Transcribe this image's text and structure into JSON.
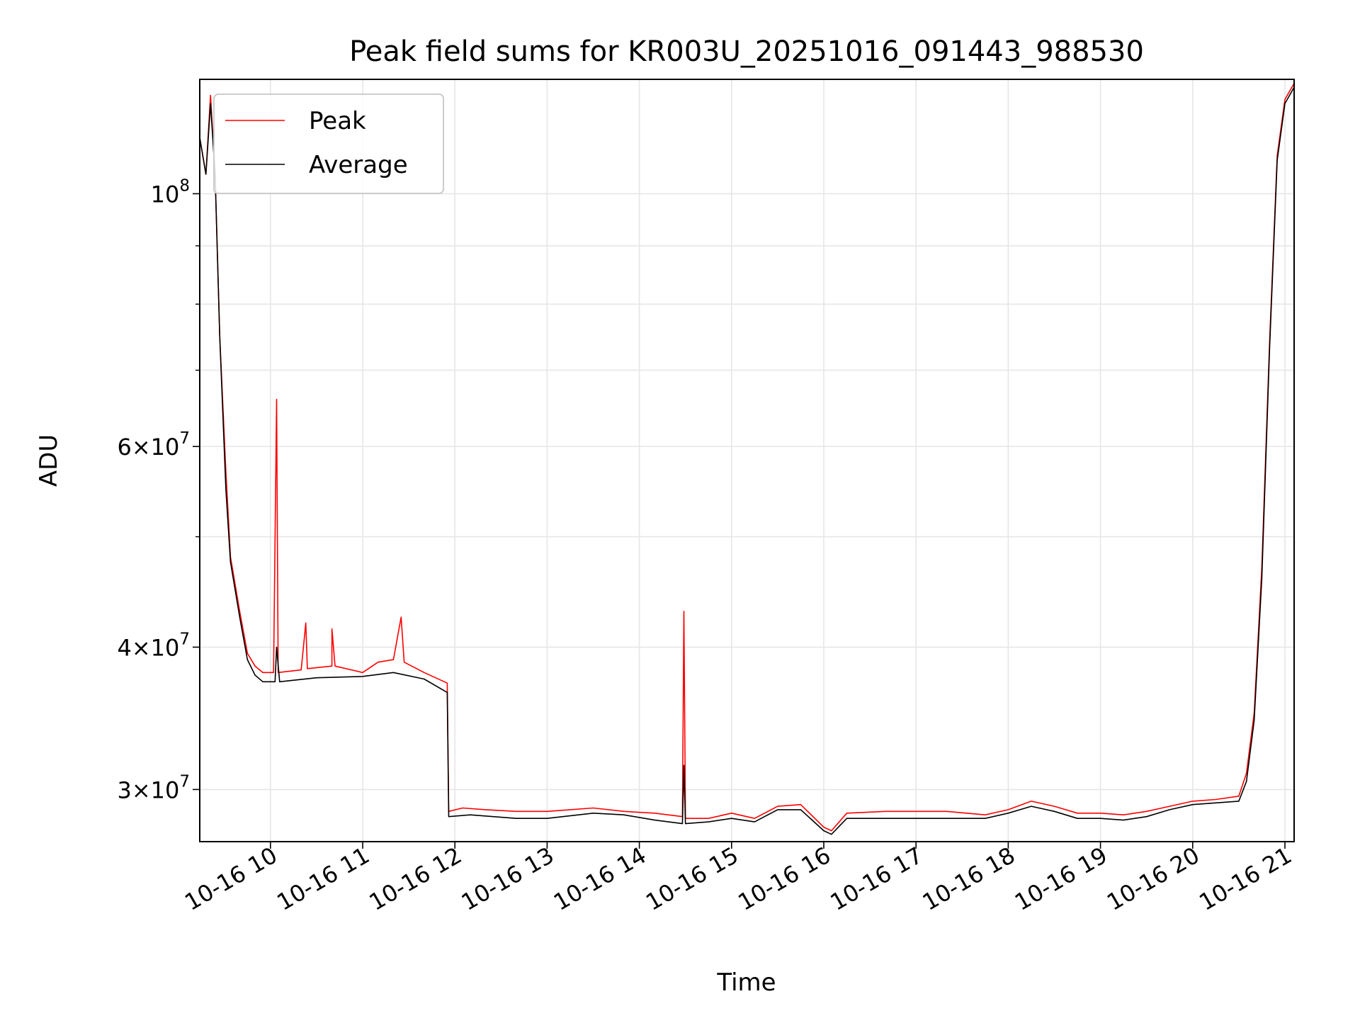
{
  "chart_data": {
    "type": "line",
    "title": "Peak field sums for KR003U_20251016_091443_988530",
    "xlabel": "Time",
    "ylabel": "ADU",
    "scale": {
      "x": "time",
      "y": "log"
    },
    "xlim": [
      "2025-10-16T09:14",
      "2025-10-16T21:06"
    ],
    "ylim": [
      27000000,
      126000000
    ],
    "grid": true,
    "legend_position": "upper-left",
    "x_ticks": [
      {
        "time": "2025-10-16T10:00",
        "label": "10-16 10"
      },
      {
        "time": "2025-10-16T11:00",
        "label": "10-16 11"
      },
      {
        "time": "2025-10-16T12:00",
        "label": "10-16 12"
      },
      {
        "time": "2025-10-16T13:00",
        "label": "10-16 13"
      },
      {
        "time": "2025-10-16T14:00",
        "label": "10-16 14"
      },
      {
        "time": "2025-10-16T15:00",
        "label": "10-16 15"
      },
      {
        "time": "2025-10-16T16:00",
        "label": "10-16 16"
      },
      {
        "time": "2025-10-16T17:00",
        "label": "10-16 17"
      },
      {
        "time": "2025-10-16T18:00",
        "label": "10-16 18"
      },
      {
        "time": "2025-10-16T19:00",
        "label": "10-16 19"
      },
      {
        "time": "2025-10-16T20:00",
        "label": "10-16 20"
      },
      {
        "time": "2025-10-16T21:00",
        "label": "10-16 21"
      }
    ],
    "y_major_ticks": [
      {
        "value": 30000000,
        "mantissa": "3",
        "base": "10",
        "exp": "7"
      },
      {
        "value": 40000000,
        "mantissa": "4",
        "base": "10",
        "exp": "7"
      },
      {
        "value": 60000000,
        "mantissa": "6",
        "base": "10",
        "exp": "7"
      },
      {
        "value": 100000000,
        "mantissa": "",
        "base": "10",
        "exp": "8"
      }
    ],
    "y_minor_ticks": [
      50000000,
      70000000,
      80000000,
      90000000
    ],
    "series": [
      {
        "name": "Peak",
        "color": "#ff0000",
        "points": [
          [
            "2025-10-16T09:14",
            112000000
          ],
          [
            "2025-10-16T09:18",
            104000000
          ],
          [
            "2025-10-16T09:21",
            122000000
          ],
          [
            "2025-10-16T09:24",
            104000000
          ],
          [
            "2025-10-16T09:27",
            75000000
          ],
          [
            "2025-10-16T09:31",
            57000000
          ],
          [
            "2025-10-16T09:34",
            48000000
          ],
          [
            "2025-10-16T09:40",
            43000000
          ],
          [
            "2025-10-16T09:45",
            39500000
          ],
          [
            "2025-10-16T09:50",
            38500000
          ],
          [
            "2025-10-16T09:55",
            38000000
          ],
          [
            "2025-10-16T10:02",
            38000000
          ],
          [
            "2025-10-16T10:04",
            66000000
          ],
          [
            "2025-10-16T10:05",
            38000000
          ],
          [
            "2025-10-16T10:20",
            38200000
          ],
          [
            "2025-10-16T10:23",
            42000000
          ],
          [
            "2025-10-16T10:24",
            38300000
          ],
          [
            "2025-10-16T10:40",
            38500000
          ],
          [
            "2025-10-16T10:40",
            41500000
          ],
          [
            "2025-10-16T10:42",
            38500000
          ],
          [
            "2025-10-16T11:00",
            38000000
          ],
          [
            "2025-10-16T11:10",
            38800000
          ],
          [
            "2025-10-16T11:20",
            39000000
          ],
          [
            "2025-10-16T11:25",
            42500000
          ],
          [
            "2025-10-16T11:27",
            38800000
          ],
          [
            "2025-10-16T11:40",
            38000000
          ],
          [
            "2025-10-16T11:55",
            37200000
          ],
          [
            "2025-10-16T11:56",
            28700000
          ],
          [
            "2025-10-16T12:05",
            28900000
          ],
          [
            "2025-10-16T12:20",
            28800000
          ],
          [
            "2025-10-16T12:40",
            28700000
          ],
          [
            "2025-10-16T13:00",
            28700000
          ],
          [
            "2025-10-16T13:15",
            28800000
          ],
          [
            "2025-10-16T13:30",
            28900000
          ],
          [
            "2025-10-16T13:50",
            28700000
          ],
          [
            "2025-10-16T14:10",
            28600000
          ],
          [
            "2025-10-16T14:28",
            28400000
          ],
          [
            "2025-10-16T14:29",
            43000000
          ],
          [
            "2025-10-16T14:30",
            28300000
          ],
          [
            "2025-10-16T14:45",
            28300000
          ],
          [
            "2025-10-16T15:00",
            28600000
          ],
          [
            "2025-10-16T15:15",
            28300000
          ],
          [
            "2025-10-16T15:30",
            29000000
          ],
          [
            "2025-10-16T15:45",
            29100000
          ],
          [
            "2025-10-16T16:00",
            27800000
          ],
          [
            "2025-10-16T16:05",
            27600000
          ],
          [
            "2025-10-16T16:15",
            28600000
          ],
          [
            "2025-10-16T16:40",
            28700000
          ],
          [
            "2025-10-16T17:00",
            28700000
          ],
          [
            "2025-10-16T17:20",
            28700000
          ],
          [
            "2025-10-16T17:45",
            28500000
          ],
          [
            "2025-10-16T18:00",
            28800000
          ],
          [
            "2025-10-16T18:15",
            29300000
          ],
          [
            "2025-10-16T18:30",
            29000000
          ],
          [
            "2025-10-16T18:45",
            28600000
          ],
          [
            "2025-10-16T19:00",
            28600000
          ],
          [
            "2025-10-16T19:15",
            28500000
          ],
          [
            "2025-10-16T19:30",
            28700000
          ],
          [
            "2025-10-16T19:45",
            29000000
          ],
          [
            "2025-10-16T20:00",
            29300000
          ],
          [
            "2025-10-16T20:15",
            29400000
          ],
          [
            "2025-10-16T20:30",
            29600000
          ],
          [
            "2025-10-16T20:35",
            31000000
          ],
          [
            "2025-10-16T20:40",
            35000000
          ],
          [
            "2025-10-16T20:45",
            47000000
          ],
          [
            "2025-10-16T20:50",
            74000000
          ],
          [
            "2025-10-16T20:55",
            108000000
          ],
          [
            "2025-10-16T21:00",
            121000000
          ],
          [
            "2025-10-16T21:06",
            125000000
          ]
        ]
      },
      {
        "name": "Average",
        "color": "#000000",
        "points": [
          [
            "2025-10-16T09:14",
            112000000
          ],
          [
            "2025-10-16T09:18",
            104000000
          ],
          [
            "2025-10-16T09:21",
            120000000
          ],
          [
            "2025-10-16T09:24",
            104000000
          ],
          [
            "2025-10-16T09:27",
            75000000
          ],
          [
            "2025-10-16T09:31",
            55000000
          ],
          [
            "2025-10-16T09:34",
            47500000
          ],
          [
            "2025-10-16T09:40",
            42500000
          ],
          [
            "2025-10-16T09:45",
            39000000
          ],
          [
            "2025-10-16T09:50",
            37800000
          ],
          [
            "2025-10-16T09:55",
            37300000
          ],
          [
            "2025-10-16T10:03",
            37300000
          ],
          [
            "2025-10-16T10:04",
            40000000
          ],
          [
            "2025-10-16T10:06",
            37300000
          ],
          [
            "2025-10-16T10:30",
            37600000
          ],
          [
            "2025-10-16T11:00",
            37700000
          ],
          [
            "2025-10-16T11:20",
            38000000
          ],
          [
            "2025-10-16T11:40",
            37500000
          ],
          [
            "2025-10-16T11:55",
            36500000
          ],
          [
            "2025-10-16T11:56",
            28400000
          ],
          [
            "2025-10-16T12:10",
            28500000
          ],
          [
            "2025-10-16T12:40",
            28300000
          ],
          [
            "2025-10-16T13:00",
            28300000
          ],
          [
            "2025-10-16T13:30",
            28600000
          ],
          [
            "2025-10-16T13:50",
            28500000
          ],
          [
            "2025-10-16T14:10",
            28200000
          ],
          [
            "2025-10-16T14:28",
            28000000
          ],
          [
            "2025-10-16T14:29",
            31500000
          ],
          [
            "2025-10-16T14:30",
            28000000
          ],
          [
            "2025-10-16T14:45",
            28100000
          ],
          [
            "2025-10-16T15:00",
            28300000
          ],
          [
            "2025-10-16T15:15",
            28100000
          ],
          [
            "2025-10-16T15:30",
            28800000
          ],
          [
            "2025-10-16T15:45",
            28800000
          ],
          [
            "2025-10-16T16:00",
            27600000
          ],
          [
            "2025-10-16T16:05",
            27400000
          ],
          [
            "2025-10-16T16:15",
            28300000
          ],
          [
            "2025-10-16T16:40",
            28300000
          ],
          [
            "2025-10-16T17:00",
            28300000
          ],
          [
            "2025-10-16T17:20",
            28300000
          ],
          [
            "2025-10-16T17:45",
            28300000
          ],
          [
            "2025-10-16T18:00",
            28600000
          ],
          [
            "2025-10-16T18:15",
            29000000
          ],
          [
            "2025-10-16T18:30",
            28700000
          ],
          [
            "2025-10-16T18:45",
            28300000
          ],
          [
            "2025-10-16T19:00",
            28300000
          ],
          [
            "2025-10-16T19:15",
            28200000
          ],
          [
            "2025-10-16T19:30",
            28400000
          ],
          [
            "2025-10-16T19:45",
            28800000
          ],
          [
            "2025-10-16T20:00",
            29100000
          ],
          [
            "2025-10-16T20:15",
            29200000
          ],
          [
            "2025-10-16T20:30",
            29300000
          ],
          [
            "2025-10-16T20:35",
            30500000
          ],
          [
            "2025-10-16T20:40",
            34500000
          ],
          [
            "2025-10-16T20:45",
            46000000
          ],
          [
            "2025-10-16T20:50",
            73000000
          ],
          [
            "2025-10-16T20:55",
            107000000
          ],
          [
            "2025-10-16T21:00",
            120000000
          ],
          [
            "2025-10-16T21:06",
            124000000
          ]
        ]
      }
    ]
  }
}
